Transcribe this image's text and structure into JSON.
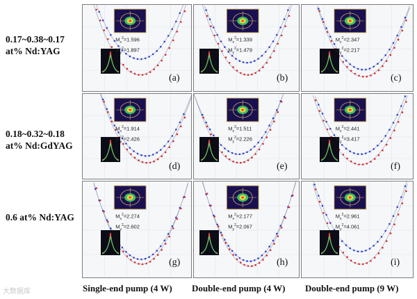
{
  "row_labels": [
    [
      "0.17~0.38~0.17",
      "at% Nd:YAG"
    ],
    [
      "0.18~0.32~0.18",
      "at% Nd:GdYAG"
    ],
    [
      "0.6 at% Nd:YAG"
    ]
  ],
  "column_labels": [
    "Single-end pump (4 W)",
    "Double-end pump (4 W)",
    "Double-end pump (9 W)"
  ],
  "watermark": "大数据库",
  "colors": {
    "series_x": "#2f3fd8",
    "series_y": "#e02828",
    "fit_line": "#9aa4b6",
    "inset_bg": "#1a1050"
  },
  "chart_data": {
    "type": "scatter",
    "title": "",
    "grid": true,
    "legend": "none",
    "panels": [
      {
        "row": 0,
        "col": 0,
        "tag": "(a)",
        "m2x": "1.596",
        "m2y": "1.897",
        "xmin": 0.52,
        "ymin_x": 0.62,
        "ymin_y": 0.8,
        "k_x": 0.8,
        "k_y": 0.92
      },
      {
        "row": 0,
        "col": 1,
        "tag": "(b)",
        "m2x": "1.339",
        "m2y": "1.479",
        "xmin": 0.5,
        "ymin_x": 0.66,
        "ymin_y": 0.8,
        "k_x": 0.82,
        "k_y": 0.92
      },
      {
        "row": 0,
        "col": 2,
        "tag": "(c)",
        "m2x": "2.347",
        "m2y": "2.217",
        "xmin": 0.55,
        "ymin_x": 0.74,
        "ymin_y": 0.82,
        "k_x": 0.88,
        "k_y": 0.95
      },
      {
        "row": 1,
        "col": 0,
        "tag": "(d)",
        "m2x": "1.914",
        "m2y": "2.426",
        "xmin": 0.58,
        "ymin_x": 0.72,
        "ymin_y": 0.8,
        "k_x": 0.85,
        "k_y": 0.92
      },
      {
        "row": 1,
        "col": 1,
        "tag": "(e)",
        "m2x": "1.511",
        "m2y": "2.226",
        "xmin": 0.42,
        "ymin_x": 0.7,
        "ymin_y": 0.8,
        "k_x": 0.8,
        "k_y": 0.92
      },
      {
        "row": 1,
        "col": 2,
        "tag": "(f)",
        "m2x": "2.441",
        "m2y": "3.417",
        "xmin": 0.52,
        "ymin_x": 0.7,
        "ymin_y": 0.82,
        "k_x": 0.85,
        "k_y": 0.92
      },
      {
        "row": 2,
        "col": 0,
        "tag": "(g)",
        "m2x": "2.274",
        "m2y": "2.602",
        "xmin": 0.53,
        "ymin_x": 0.8,
        "ymin_y": 0.85,
        "k_x": 0.85,
        "k_y": 0.92
      },
      {
        "row": 2,
        "col": 1,
        "tag": "(h)",
        "m2x": "2.177",
        "m2y": "2.067",
        "xmin": 0.52,
        "ymin_x": 0.82,
        "ymin_y": 0.87,
        "k_x": 0.85,
        "k_y": 0.92
      },
      {
        "row": 2,
        "col": 2,
        "tag": "(i)",
        "m2x": "2.961",
        "m2y": "4.061",
        "xmin": 0.52,
        "ymin_x": 0.72,
        "ymin_y": 0.85,
        "k_x": 0.85,
        "k_y": 0.95
      }
    ]
  }
}
